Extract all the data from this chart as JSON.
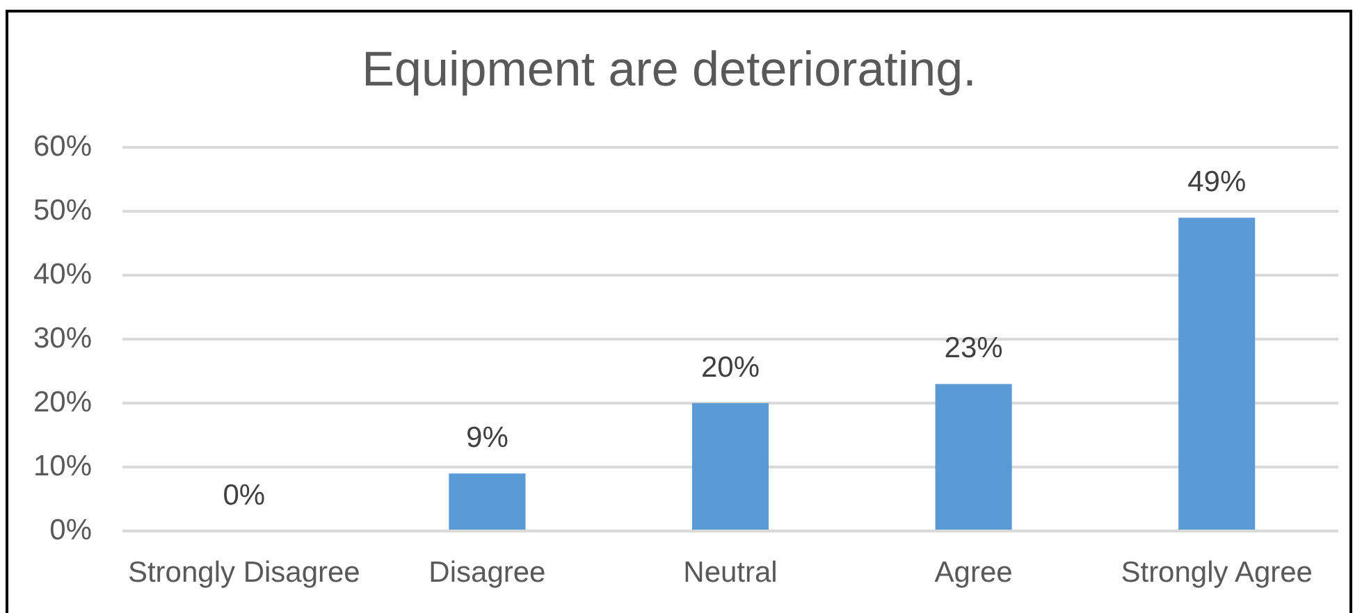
{
  "chart_data": {
    "type": "bar",
    "title": "Equipment are deteriorating.",
    "categories": [
      "Strongly Disagree",
      "Disagree",
      "Neutral",
      "Agree",
      "Strongly Agree"
    ],
    "values": [
      0,
      9,
      20,
      23,
      49
    ],
    "color": "#5b9bd5",
    "value_labels": [
      "0%",
      "9%",
      "20%",
      "23%",
      "49%"
    ],
    "ylim": [
      0,
      60
    ],
    "yticks": [
      {
        "value": 0,
        "label": "0%"
      },
      {
        "value": 10,
        "label": "10%"
      },
      {
        "value": 20,
        "label": "20%"
      },
      {
        "value": 30,
        "label": "30%"
      },
      {
        "value": 40,
        "label": "40%"
      },
      {
        "value": 50,
        "label": "50%"
      },
      {
        "value": 60,
        "label": "60%"
      }
    ],
    "grid": "y"
  }
}
